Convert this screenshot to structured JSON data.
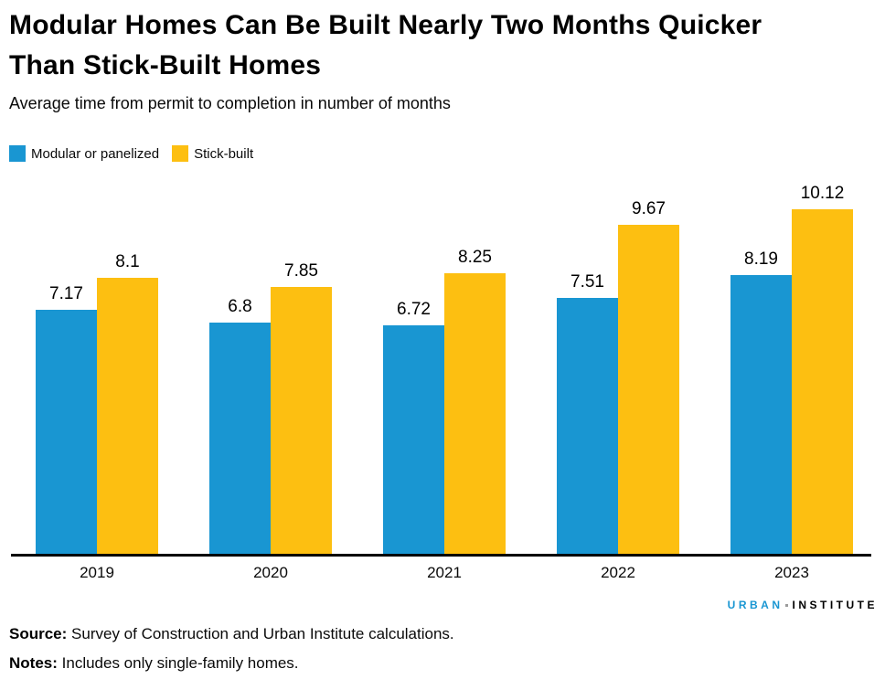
{
  "title": {
    "line1": "Modular Homes Can Be Built Nearly Two Months Quicker",
    "line2": "Than Stick-Built Homes"
  },
  "subtitle": "Average time from permit to completion in number of months",
  "legend": {
    "items": [
      {
        "label": "Modular or panelized",
        "color": "#1996d2"
      },
      {
        "label": "Stick-built",
        "color": "#fdbf11"
      }
    ]
  },
  "chart_data": {
    "type": "bar",
    "title": "Modular Homes Can Be Built Nearly Two Months Quicker Than Stick-Built Homes",
    "subtitle": "Average time from permit to completion in number of months",
    "categories": [
      "2019",
      "2020",
      "2021",
      "2022",
      "2023"
    ],
    "series": [
      {
        "name": "Modular or panelized",
        "color": "#1996d2",
        "values": [
          7.17,
          6.8,
          6.72,
          7.51,
          8.19
        ]
      },
      {
        "name": "Stick-built",
        "color": "#fdbf11",
        "values": [
          8.1,
          7.85,
          8.25,
          9.67,
          10.12
        ]
      }
    ],
    "xlabel": "",
    "ylabel": "",
    "ylim": [
      0,
      10.9
    ],
    "grid": false,
    "y_axis_shown": false,
    "value_labels_shown": true,
    "legend_position": "top-left",
    "axis_line_color": "#000000"
  },
  "footer": {
    "logo": {
      "word1": "URBAN",
      "word2": "INSTITUTE",
      "word1_color": "#1996d2",
      "word2_color": "#000000",
      "separator_color": "#9b9b9b"
    },
    "source_label": "Source:",
    "source_text": "Survey of Construction and Urban Institute calculations.",
    "notes_label": "Notes:",
    "notes_text": "Includes only single-family homes."
  }
}
